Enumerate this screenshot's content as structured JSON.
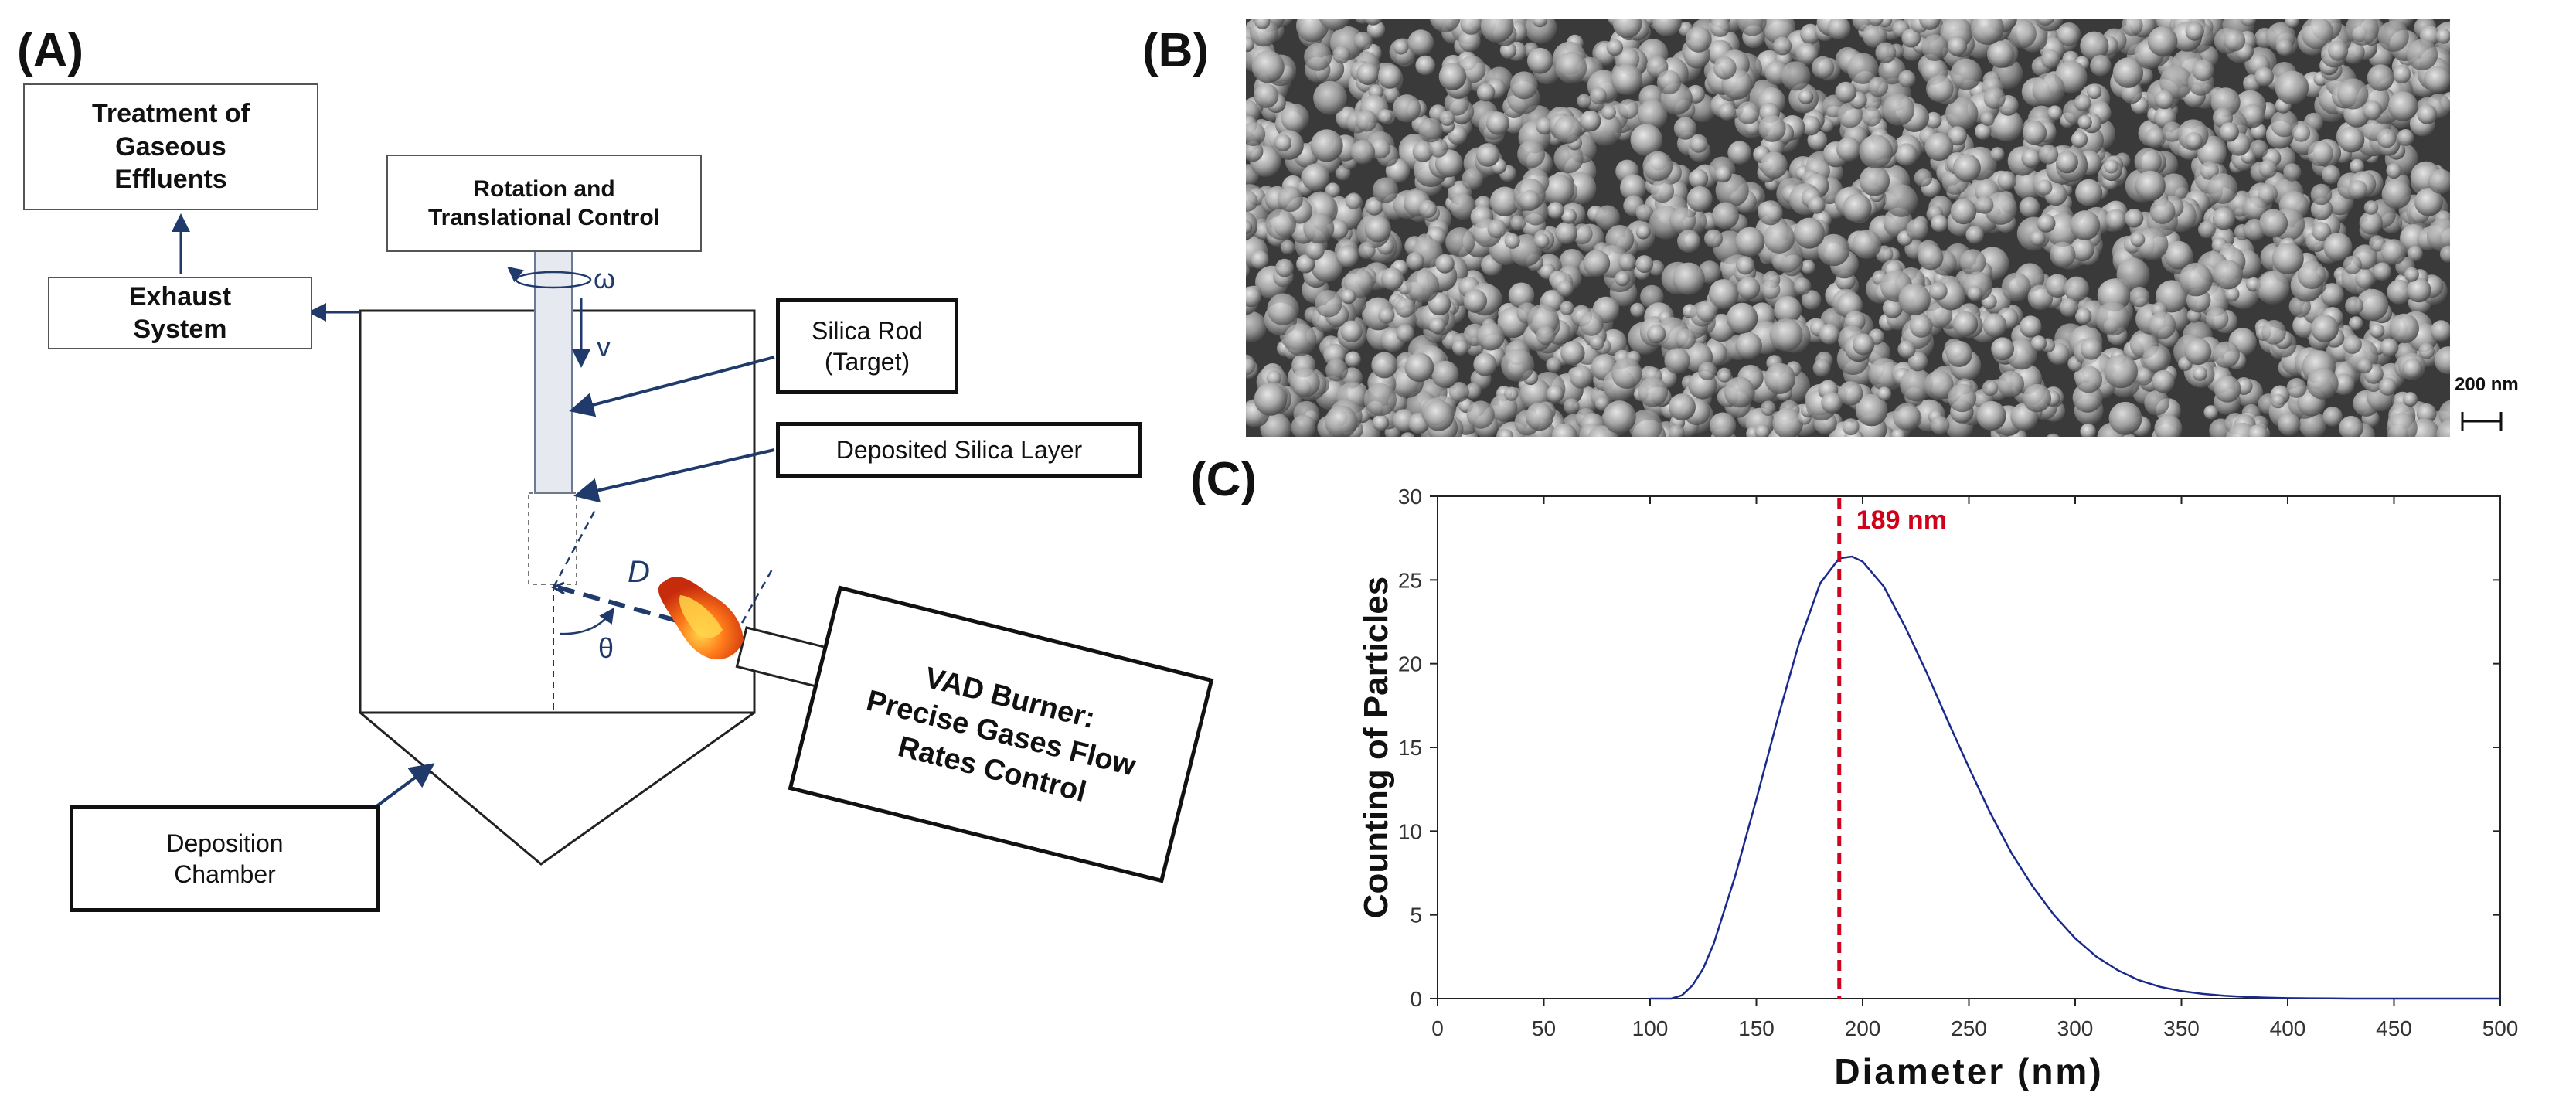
{
  "panel_labels": {
    "a": "(A)",
    "b": "(B)",
    "c": "(C)"
  },
  "diagram": {
    "treatment_box": "Treatment of\nGaseous\nEffluents",
    "exhaust_box": "Exhaust\nSystem",
    "rotation_box": "Rotation and\nTranslational Control",
    "silica_rod_box": "Silica Rod\n(Target)",
    "deposited_layer_box": "Deposited Silica Layer",
    "vad_burner_box": "VAD Burner:\nPrecise Gases Flow\nRates Control",
    "deposition_chamber_box": "Deposition\nChamber",
    "symbol_omega": "ω",
    "symbol_v": "v",
    "symbol_d": "D",
    "symbol_theta": "θ"
  },
  "sem": {
    "scale_label": "200 nm"
  },
  "chart_data": {
    "type": "line",
    "xlabel": "Diameter (nm)",
    "ylabel": "Counting of Particles",
    "xlim": [
      0,
      500
    ],
    "ylim": [
      0,
      30
    ],
    "xticks": [
      "0",
      "50",
      "100",
      "150",
      "200",
      "250",
      "300",
      "350",
      "400",
      "450",
      "500"
    ],
    "yticks": [
      "0",
      "5",
      "10",
      "15",
      "20",
      "25",
      "30"
    ],
    "peak_annotation": "189 nm",
    "peak_x": 189,
    "line_color": "#1a2a8c",
    "annotation_color": "#d0021b",
    "series": [
      {
        "x": [
          100,
          110,
          115,
          120,
          125,
          130,
          140,
          150,
          160,
          170,
          180,
          189,
          195,
          200,
          210,
          220,
          230,
          240,
          250,
          260,
          270,
          280,
          290,
          300,
          310,
          320,
          330,
          340,
          350,
          360,
          370,
          380,
          390,
          400,
          410,
          420,
          430,
          440,
          450,
          460,
          470,
          480,
          490,
          500
        ],
        "y": [
          0,
          0,
          0.2,
          0.8,
          1.8,
          3.3,
          7.3,
          11.9,
          16.7,
          21.2,
          24.8,
          26.3,
          26.4,
          26.1,
          24.6,
          22.2,
          19.5,
          16.6,
          13.8,
          11.1,
          8.7,
          6.7,
          5.0,
          3.6,
          2.5,
          1.7,
          1.1,
          0.7,
          0.45,
          0.28,
          0.17,
          0.1,
          0.06,
          0.03,
          0.02,
          0.01,
          0,
          0,
          0,
          0,
          0,
          0,
          0,
          0
        ]
      }
    ]
  }
}
